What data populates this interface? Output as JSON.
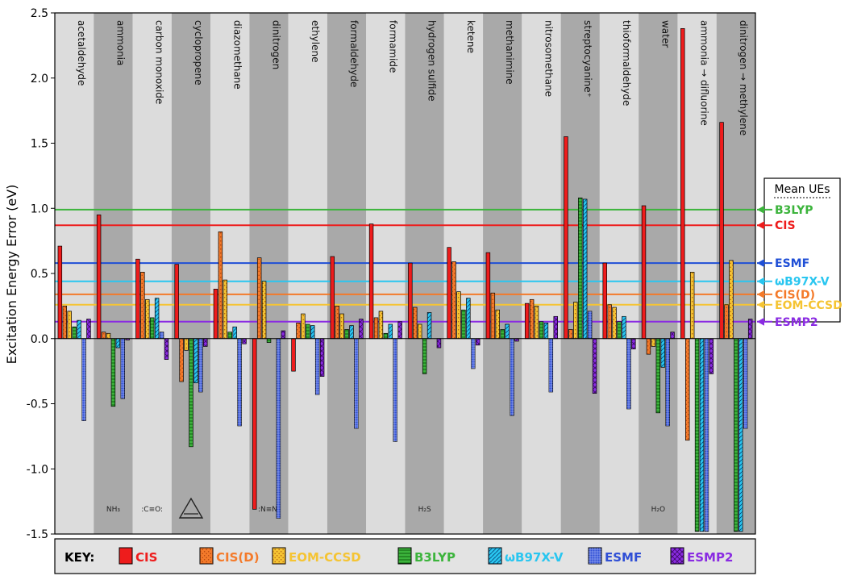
{
  "chart_data": {
    "type": "bar",
    "ylabel": "Excitation Energy Error (eV)",
    "ylim": [
      -1.5,
      2.5
    ],
    "yticks": [
      "-1.5",
      "-1.0",
      "-0.5",
      "0.0",
      "0.5",
      "1.0",
      "1.5",
      "2.0",
      "2.5"
    ],
    "ytick_values": [
      -1.5,
      -1.0,
      -0.5,
      0.0,
      0.5,
      1.0,
      1.5,
      2.0,
      2.5
    ],
    "categories": [
      "acetaldehyde",
      "ammonia",
      "carbon monoxide",
      "cyclopropene",
      "diazomethane",
      "dinitrogen",
      "ethylene",
      "formaldehyde",
      "formamide",
      "hydrogen sulfide",
      "ketene",
      "methanimine",
      "nitrosomethane",
      "streptocyanine⁺",
      "thioformaldehyde",
      "water",
      "ammonia → difluorine",
      "dinitrogen → methylene"
    ],
    "series": [
      {
        "name": "CIS",
        "color": "#ee1c1c",
        "pattern": "solid",
        "values": [
          0.71,
          0.95,
          0.61,
          0.57,
          0.38,
          -1.31,
          -0.25,
          0.63,
          0.88,
          0.58,
          0.7,
          0.66,
          0.27,
          1.55,
          0.58,
          1.02,
          2.38,
          1.66
        ]
      },
      {
        "name": "CIS(D)",
        "color": "#f47a2a",
        "pattern": "dots",
        "values": [
          0.25,
          0.05,
          0.51,
          -0.33,
          0.82,
          0.62,
          0.12,
          0.25,
          0.16,
          0.24,
          0.59,
          0.35,
          0.3,
          0.07,
          0.26,
          -0.12,
          -0.78,
          0.26
        ]
      },
      {
        "name": "EOM-CCSD",
        "color": "#f5c433",
        "pattern": "dots",
        "values": [
          0.21,
          0.04,
          0.3,
          -0.09,
          0.45,
          0.44,
          0.19,
          0.19,
          0.21,
          0.11,
          0.36,
          0.22,
          0.25,
          0.28,
          0.24,
          -0.06,
          0.51,
          0.6
        ]
      },
      {
        "name": "B3LYP",
        "color": "#3cb43c",
        "pattern": "hlines",
        "values": [
          0.09,
          -0.52,
          0.16,
          -0.83,
          0.05,
          -0.03,
          0.11,
          0.07,
          0.04,
          -0.27,
          0.22,
          0.07,
          0.13,
          1.08,
          0.13,
          -0.57,
          -1.48,
          -1.48
        ]
      },
      {
        "name": "ωB97X-V",
        "color": "#29c6f0",
        "pattern": "diag",
        "values": [
          0.14,
          -0.07,
          0.31,
          -0.34,
          0.09,
          null,
          0.1,
          0.1,
          0.11,
          0.2,
          0.31,
          0.11,
          0.12,
          1.07,
          0.17,
          -0.22,
          -1.48,
          -1.48
        ]
      },
      {
        "name": "ESMF",
        "color": "#2f4fd6",
        "pattern": "grid",
        "values": [
          -0.63,
          -0.46,
          0.05,
          -0.41,
          -0.67,
          -1.38,
          -0.43,
          -0.69,
          -0.79,
          null,
          -0.23,
          -0.59,
          -0.41,
          0.21,
          -0.54,
          -0.67,
          -1.48,
          -0.69
        ]
      },
      {
        "name": "ESMP2",
        "color": "#8a2be2",
        "pattern": "cross",
        "values": [
          0.15,
          -0.01,
          -0.16,
          -0.06,
          -0.04,
          0.06,
          -0.29,
          0.15,
          0.13,
          -0.07,
          -0.05,
          -0.02,
          0.17,
          -0.42,
          -0.08,
          0.05,
          -0.27,
          0.15
        ]
      }
    ],
    "mean_ues": {
      "title": "Mean UEs",
      "items": [
        {
          "name": "B3LYP",
          "value": 0.99,
          "color": "#3cb43c"
        },
        {
          "name": "CIS",
          "value": 0.87,
          "color": "#ee1c1c"
        },
        {
          "name": "ESMF",
          "value": 0.58,
          "color": "#1f4fd6"
        },
        {
          "name": "ωB97X-V",
          "value": 0.44,
          "color": "#29c6f0"
        },
        {
          "name": "CIS(D)",
          "value": 0.34,
          "color": "#f47a2a"
        },
        {
          "name": "EOM-CCSD",
          "value": 0.26,
          "color": "#f5c433"
        },
        {
          "name": "ESMP2",
          "value": 0.13,
          "color": "#8a2be2"
        }
      ]
    },
    "key_label": "KEY:",
    "molecule_labels": [
      "",
      "NH₃",
      ":C≡O:",
      "",
      "",
      ":N≡N:",
      "",
      "",
      "",
      "H₂S",
      "",
      "",
      "",
      "",
      "",
      "H₂O",
      "",
      ""
    ]
  }
}
